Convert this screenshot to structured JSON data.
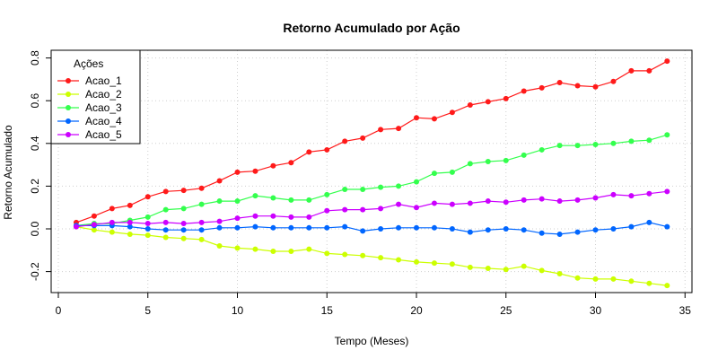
{
  "chart_data": {
    "type": "line",
    "title": "Retorno Acumulado por Ação",
    "xlabel": "Tempo (Meses)",
    "ylabel": "Retorno Acumulado",
    "xlim": [
      0,
      35
    ],
    "ylim": [
      -0.3,
      0.85
    ],
    "x_ticks": [
      0,
      5,
      10,
      15,
      20,
      25,
      30,
      35
    ],
    "y_ticks": [
      -0.2,
      0.0,
      0.2,
      0.4,
      0.6,
      0.8
    ],
    "x_tick_labels": [
      "0",
      "5",
      "10",
      "15",
      "20",
      "25",
      "30",
      "35"
    ],
    "y_tick_labels": [
      "-0.2",
      "0.0",
      "0.2",
      "0.4",
      "0.6",
      "0.8"
    ],
    "grid": true,
    "legend": {
      "title": "Ações",
      "position": "top-left"
    },
    "x": [
      1,
      2,
      3,
      4,
      5,
      6,
      7,
      8,
      9,
      10,
      11,
      12,
      13,
      14,
      15,
      16,
      17,
      18,
      19,
      20,
      21,
      22,
      23,
      24,
      25,
      26,
      27,
      28,
      29,
      30,
      31,
      32,
      33,
      34
    ],
    "series": [
      {
        "name": "Acao_1",
        "color": "#ff1a1a",
        "values": [
          0.03,
          0.06,
          0.095,
          0.11,
          0.15,
          0.175,
          0.18,
          0.19,
          0.225,
          0.265,
          0.27,
          0.295,
          0.31,
          0.36,
          0.37,
          0.41,
          0.425,
          0.465,
          0.47,
          0.52,
          0.515,
          0.545,
          0.58,
          0.595,
          0.61,
          0.645,
          0.66,
          0.685,
          0.67,
          0.665,
          0.69,
          0.74,
          0.74,
          0.785
        ]
      },
      {
        "name": "Acao_2",
        "color": "#ccff00",
        "values": [
          0.01,
          -0.005,
          -0.015,
          -0.025,
          -0.03,
          -0.04,
          -0.045,
          -0.05,
          -0.08,
          -0.09,
          -0.095,
          -0.105,
          -0.105,
          -0.095,
          -0.115,
          -0.12,
          -0.125,
          -0.135,
          -0.145,
          -0.155,
          -0.16,
          -0.165,
          -0.18,
          -0.185,
          -0.19,
          -0.175,
          -0.195,
          -0.21,
          -0.23,
          -0.235,
          -0.235,
          -0.245,
          -0.255,
          -0.265
        ]
      },
      {
        "name": "Acao_3",
        "color": "#33ff4d",
        "values": [
          0.015,
          0.025,
          0.025,
          0.04,
          0.055,
          0.09,
          0.095,
          0.115,
          0.13,
          0.13,
          0.155,
          0.145,
          0.135,
          0.135,
          0.16,
          0.185,
          0.185,
          0.195,
          0.2,
          0.22,
          0.26,
          0.265,
          0.305,
          0.315,
          0.32,
          0.345,
          0.37,
          0.39,
          0.39,
          0.395,
          0.4,
          0.41,
          0.415,
          0.44
        ]
      },
      {
        "name": "Acao_4",
        "color": "#0066ff",
        "values": [
          0.015,
          0.015,
          0.015,
          0.01,
          0.0,
          -0.005,
          -0.005,
          -0.005,
          0.005,
          0.005,
          0.01,
          0.005,
          0.005,
          0.005,
          0.005,
          0.01,
          -0.01,
          0.0,
          0.005,
          0.005,
          0.005,
          0.0,
          -0.015,
          -0.005,
          0.0,
          -0.005,
          -0.02,
          -0.025,
          -0.015,
          -0.005,
          0.0,
          0.01,
          0.03,
          0.01
        ]
      },
      {
        "name": "Acao_5",
        "color": "#cc00ff",
        "values": [
          0.01,
          0.02,
          0.03,
          0.03,
          0.025,
          0.03,
          0.025,
          0.03,
          0.035,
          0.05,
          0.06,
          0.06,
          0.055,
          0.055,
          0.085,
          0.09,
          0.09,
          0.095,
          0.115,
          0.1,
          0.12,
          0.115,
          0.12,
          0.13,
          0.125,
          0.135,
          0.14,
          0.13,
          0.135,
          0.145,
          0.16,
          0.155,
          0.165,
          0.175
        ]
      }
    ]
  }
}
